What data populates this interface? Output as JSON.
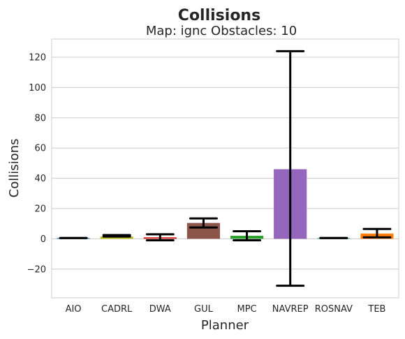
{
  "chart_data": {
    "type": "bar",
    "title": "Collisions",
    "subtitle": "Map: ignc Obstacles: 10",
    "xlabel": "Planner",
    "ylabel": "Collisions",
    "categories": [
      "AIO",
      "CADRL",
      "DWA",
      "GUL",
      "MPC",
      "NAVREP",
      "ROSNAV",
      "TEB"
    ],
    "values": [
      0.5,
      1.5,
      1.0,
      10.5,
      2.0,
      46.0,
      0.5,
      3.5
    ],
    "error_low": [
      0.5,
      1.5,
      -1.0,
      7.5,
      -1.0,
      -31.0,
      0.5,
      1.0
    ],
    "error_high": [
      0.5,
      2.5,
      3.0,
      13.5,
      5.0,
      124.0,
      0.5,
      6.5
    ],
    "colors": [
      "#1f77b4",
      "#bcbd22",
      "#d62728",
      "#8c564b",
      "#2ca02c",
      "#9467bd",
      "#17becf",
      "#ff7f0e"
    ],
    "ylim": [
      -39,
      132
    ],
    "yticks": [
      -20,
      0,
      20,
      40,
      60,
      80,
      100,
      120
    ],
    "ytick_labels": [
      "−20",
      "0",
      "20",
      "40",
      "60",
      "80",
      "100",
      "120"
    ],
    "grid": true,
    "style": "whitegrid"
  }
}
